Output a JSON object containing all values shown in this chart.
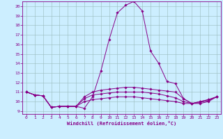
{
  "title": "",
  "xlabel": "Windchill (Refroidissement éolien,°C)",
  "xlim": [
    -0.5,
    23.5
  ],
  "ylim": [
    8.7,
    20.5
  ],
  "xticks": [
    0,
    1,
    2,
    3,
    4,
    5,
    6,
    7,
    8,
    9,
    10,
    11,
    12,
    13,
    14,
    15,
    16,
    17,
    18,
    19,
    20,
    21,
    22,
    23
  ],
  "yticks": [
    9,
    10,
    11,
    12,
    13,
    14,
    15,
    16,
    17,
    18,
    19,
    20
  ],
  "bg_color": "#cceeff",
  "line_color": "#880088",
  "grid_color": "#99bbbb",
  "line1_x": [
    0,
    1,
    2,
    3,
    4,
    5,
    6,
    7,
    8,
    9,
    10,
    11,
    12,
    13,
    14,
    15,
    16,
    17,
    18,
    19,
    20,
    21,
    22,
    23
  ],
  "line1_y": [
    11.0,
    10.7,
    10.6,
    9.4,
    9.5,
    9.5,
    9.5,
    9.3,
    10.5,
    13.2,
    16.5,
    19.3,
    20.1,
    20.5,
    19.5,
    15.3,
    14.0,
    12.1,
    11.9,
    10.3,
    9.8,
    10.0,
    10.2,
    10.5
  ],
  "line2_x": [
    0,
    1,
    2,
    3,
    4,
    5,
    6,
    7,
    8,
    9,
    10,
    11,
    12,
    13,
    14,
    15,
    16,
    17,
    18,
    19,
    20,
    21,
    22,
    23
  ],
  "line2_y": [
    11.0,
    10.7,
    10.6,
    9.4,
    9.5,
    9.5,
    9.5,
    10.5,
    11.0,
    11.2,
    11.3,
    11.4,
    11.5,
    11.5,
    11.4,
    11.3,
    11.2,
    11.1,
    11.0,
    10.3,
    9.8,
    10.0,
    10.2,
    10.5
  ],
  "line3_x": [
    0,
    1,
    2,
    3,
    4,
    5,
    6,
    7,
    8,
    9,
    10,
    11,
    12,
    13,
    14,
    15,
    16,
    17,
    18,
    19,
    20,
    21,
    22,
    23
  ],
  "line3_y": [
    11.0,
    10.7,
    10.6,
    9.4,
    9.5,
    9.5,
    9.5,
    10.3,
    10.7,
    10.8,
    10.9,
    11.0,
    11.0,
    11.0,
    11.0,
    10.9,
    10.8,
    10.6,
    10.4,
    10.0,
    9.8,
    9.9,
    10.1,
    10.5
  ],
  "line4_x": [
    0,
    1,
    2,
    3,
    4,
    5,
    6,
    7,
    8,
    9,
    10,
    11,
    12,
    13,
    14,
    15,
    16,
    17,
    18,
    19,
    20,
    21,
    22,
    23
  ],
  "line4_y": [
    11.0,
    10.7,
    10.6,
    9.4,
    9.5,
    9.5,
    9.5,
    10.0,
    10.2,
    10.3,
    10.4,
    10.5,
    10.5,
    10.5,
    10.4,
    10.3,
    10.2,
    10.1,
    10.0,
    9.8,
    9.8,
    9.8,
    10.0,
    10.5
  ]
}
